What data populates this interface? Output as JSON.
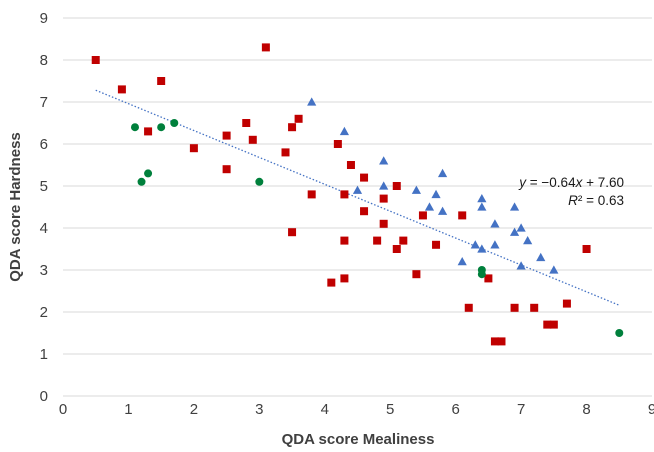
{
  "chart_data": {
    "type": "scatter",
    "title": "",
    "xlabel": "QDA score Mealiness",
    "ylabel": "QDA score Hardness",
    "xlim": [
      0,
      9
    ],
    "ylim": [
      0,
      9
    ],
    "xticks": [
      "0",
      "1",
      "2",
      "3",
      "4",
      "5",
      "6",
      "7",
      "8",
      "9"
    ],
    "yticks": [
      "0",
      "1",
      "2",
      "3",
      "4",
      "5",
      "6",
      "7",
      "8",
      "9"
    ],
    "grid": "horizontal",
    "legend": "none",
    "series": [
      {
        "marker": "square",
        "color": "#c00000",
        "points": [
          [
            0.5,
            8.0
          ],
          [
            0.9,
            7.3
          ],
          [
            1.3,
            6.3
          ],
          [
            1.5,
            7.5
          ],
          [
            2.0,
            5.9
          ],
          [
            2.5,
            6.2
          ],
          [
            2.5,
            5.4
          ],
          [
            2.8,
            6.5
          ],
          [
            2.9,
            6.1
          ],
          [
            3.1,
            8.3
          ],
          [
            3.4,
            5.8
          ],
          [
            3.5,
            6.4
          ],
          [
            3.6,
            6.6
          ],
          [
            3.5,
            3.9
          ],
          [
            3.8,
            4.8
          ],
          [
            4.1,
            2.7
          ],
          [
            4.2,
            6.0
          ],
          [
            4.3,
            4.8
          ],
          [
            4.3,
            3.7
          ],
          [
            4.3,
            2.8
          ],
          [
            4.4,
            5.5
          ],
          [
            4.6,
            5.2
          ],
          [
            4.6,
            4.4
          ],
          [
            4.8,
            3.7
          ],
          [
            4.9,
            4.7
          ],
          [
            4.9,
            4.1
          ],
          [
            5.1,
            5.0
          ],
          [
            5.1,
            3.5
          ],
          [
            5.2,
            3.7
          ],
          [
            5.4,
            2.9
          ],
          [
            5.5,
            4.3
          ],
          [
            5.7,
            3.6
          ],
          [
            6.1,
            4.3
          ],
          [
            6.2,
            2.1
          ],
          [
            6.5,
            2.8
          ],
          [
            6.6,
            1.3
          ],
          [
            6.7,
            1.3
          ],
          [
            6.9,
            2.1
          ],
          [
            7.2,
            2.1
          ],
          [
            7.4,
            1.7
          ],
          [
            7.5,
            1.7
          ],
          [
            7.7,
            2.2
          ],
          [
            8.0,
            3.5
          ]
        ]
      },
      {
        "marker": "triangle",
        "color": "#4472c4",
        "points": [
          [
            3.8,
            7.0
          ],
          [
            4.3,
            6.3
          ],
          [
            4.5,
            4.9
          ],
          [
            4.9,
            5.6
          ],
          [
            4.9,
            5.0
          ],
          [
            5.4,
            4.9
          ],
          [
            5.6,
            4.5
          ],
          [
            5.7,
            4.8
          ],
          [
            5.8,
            5.3
          ],
          [
            5.8,
            4.4
          ],
          [
            6.1,
            3.2
          ],
          [
            6.3,
            3.6
          ],
          [
            6.4,
            4.7
          ],
          [
            6.4,
            4.5
          ],
          [
            6.4,
            3.5
          ],
          [
            6.6,
            4.1
          ],
          [
            6.6,
            3.6
          ],
          [
            6.9,
            4.5
          ],
          [
            6.9,
            3.9
          ],
          [
            7.0,
            4.0
          ],
          [
            7.0,
            3.1
          ],
          [
            7.1,
            3.7
          ],
          [
            7.3,
            3.3
          ],
          [
            7.5,
            3.0
          ]
        ]
      },
      {
        "marker": "circle",
        "color": "#00803c",
        "points": [
          [
            1.1,
            6.4
          ],
          [
            1.2,
            5.1
          ],
          [
            1.3,
            5.3
          ],
          [
            1.5,
            6.4
          ],
          [
            1.7,
            6.5
          ],
          [
            3.0,
            5.1
          ],
          [
            6.4,
            3.0
          ],
          [
            6.4,
            2.9
          ],
          [
            8.5,
            1.5
          ]
        ]
      }
    ],
    "trendline": {
      "style": "dotted",
      "color": "#4472c4",
      "slope": -0.64,
      "intercept": 7.6,
      "x_range": [
        0.5,
        8.5
      ],
      "equation": "y = −0.64x + 7.60",
      "r_squared": "R² = 0.63"
    }
  }
}
